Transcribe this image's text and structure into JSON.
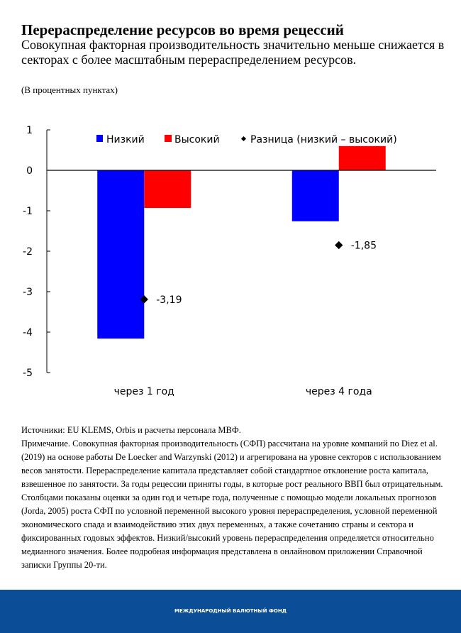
{
  "header": {
    "title": "Перераспределение ресурсов во время рецессий",
    "subtitle": "Совокупная факторная производительность значительно меньше снижается в секторах с более масштабным перераспределением ресурсов.",
    "units": "(В процентных пунктах)"
  },
  "chart_data": {
    "type": "bar",
    "categories": [
      "через 1 год",
      "через 4 года"
    ],
    "series": [
      {
        "name": "Низкий",
        "color": "#0000ff",
        "values": [
          -4.16,
          -1.26
        ]
      },
      {
        "name": "Высокий",
        "color": "#ff0000",
        "values": [
          -0.93,
          0.6
        ]
      }
    ],
    "markers": {
      "name": "Разница (низкий – высокий)",
      "color": "#000000",
      "values": [
        -3.19,
        -1.85
      ],
      "labels": [
        "-3,19",
        "-1,85"
      ]
    },
    "ylim": [
      -5,
      1
    ],
    "yticks": [
      1,
      0,
      -1,
      -2,
      -3,
      -4,
      -5
    ],
    "ytick_labels": [
      "1",
      "0",
      "-1",
      "-2",
      "-3",
      "-4",
      "-5"
    ],
    "legend": "top",
    "xlabel": "",
    "ylabel": ""
  },
  "notes": {
    "sources": "Источники: EU KLEMS, Orbis и расчеты персонала МВФ.",
    "note": "Примечание. Совокупная факторная производительность (СФП) рассчитана на уровне компаний по Diez et al. (2019) на основе работы De Loecker and Warzynski (2012) и агрегирована на уровне секторов с использованием весов занятости. Перераспределение капитала представляет собой стандартное отклонение роста капитала, взвешенное по занятости. За годы рецессии приняты годы, в которые рост реального ВВП был отрицательным. Столбцами показаны оценки за один год и четыре года, полученные с помощью модели локальных прогнозов (Jorda, 2005) роста СФП по условной переменной высокого уровня перераспределения, условной переменной экономического спада и взаимодействию этих двух переменных, а также сочетанию страны и сектора и фиксированных годовых эффектов. Низкий/высокий уровень перераспределения определяется относительно медианного значения. Более подробная информация представлена в онлайновом приложении Справочной записки Группы 20-ти."
  },
  "footer": {
    "label": "МЕЖДУНАРОДНЫЙ ВАЛЮТНЫЙ ФОНД"
  }
}
